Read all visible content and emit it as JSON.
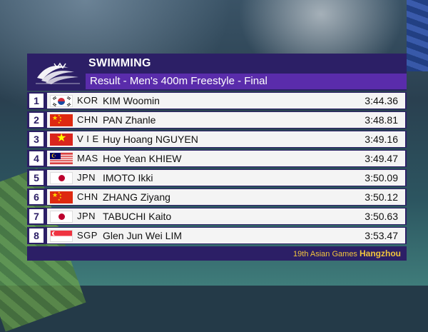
{
  "sport": "SWIMMING",
  "event": "Result - Men's 400m Freestyle - Final",
  "results": [
    {
      "rank": "1",
      "noc": "KOR",
      "name": "KIM Woomin",
      "time": "3:44.36",
      "flag": "kor"
    },
    {
      "rank": "2",
      "noc": "CHN",
      "name": "PAN Zhanle",
      "time": "3:48.81",
      "flag": "chn"
    },
    {
      "rank": "3",
      "noc": "V I E",
      "name": "Huy Hoang NGUYEN",
      "time": "3:49.16",
      "flag": "vie"
    },
    {
      "rank": "4",
      "noc": "MAS",
      "name": "Hoe Yean KHIEW",
      "time": "3:49.47",
      "flag": "mas"
    },
    {
      "rank": "5",
      "noc": "JPN",
      "name": "IMOTO Ikki",
      "time": "3:50.09",
      "flag": "jpn"
    },
    {
      "rank": "6",
      "noc": "CHN",
      "name": "ZHANG Ziyang",
      "time": "3:50.12",
      "flag": "chn"
    },
    {
      "rank": "7",
      "noc": "JPN",
      "name": "TABUCHI Kaito",
      "time": "3:50.63",
      "flag": "jpn"
    },
    {
      "rank": "8",
      "noc": "SGP",
      "name": "Glen Jun Wei LIM",
      "time": "3:53.47",
      "flag": "sgp"
    }
  ],
  "footer": {
    "games": "19th Asian Games",
    "city": "Hangzhou"
  },
  "colors": {
    "panel": "#2c1f66",
    "subtitle": "#5a2cab",
    "footer_text": "#f2c53d"
  }
}
